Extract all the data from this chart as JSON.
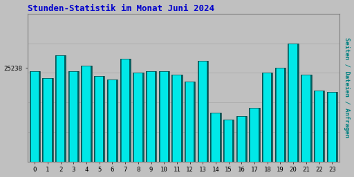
{
  "title": "Stunden-Statistik im Monat Juni 2024",
  "title_color": "#0000cc",
  "title_fontsize": 9,
  "ylabel": "Seiten / Dateien / Anfragen",
  "ylabel_color": "#008080",
  "ylabel_fontsize": 6.5,
  "background_color": "#c0c0c0",
  "categories": [
    0,
    1,
    2,
    3,
    4,
    5,
    6,
    7,
    8,
    9,
    10,
    11,
    12,
    13,
    14,
    15,
    16,
    17,
    18,
    19,
    20,
    21,
    22,
    23
  ],
  "values": [
    25220,
    25180,
    25310,
    25220,
    25250,
    25190,
    25170,
    25290,
    25210,
    25220,
    25220,
    25200,
    25160,
    25280,
    24980,
    24940,
    24960,
    25010,
    25210,
    25240,
    25380,
    25200,
    25110,
    25100
  ],
  "bar_fill_color": "#00e8e8",
  "bar_left_stripe_color": "#008080",
  "bar_right_stripe_color": "#006060",
  "bar_edge_color": "#004040",
  "ytick_label": "25238",
  "ytick_value": 25238,
  "ylim_min": 24700,
  "ylim_max": 25550,
  "tick_fontsize": 6.5,
  "border_color": "#808080"
}
